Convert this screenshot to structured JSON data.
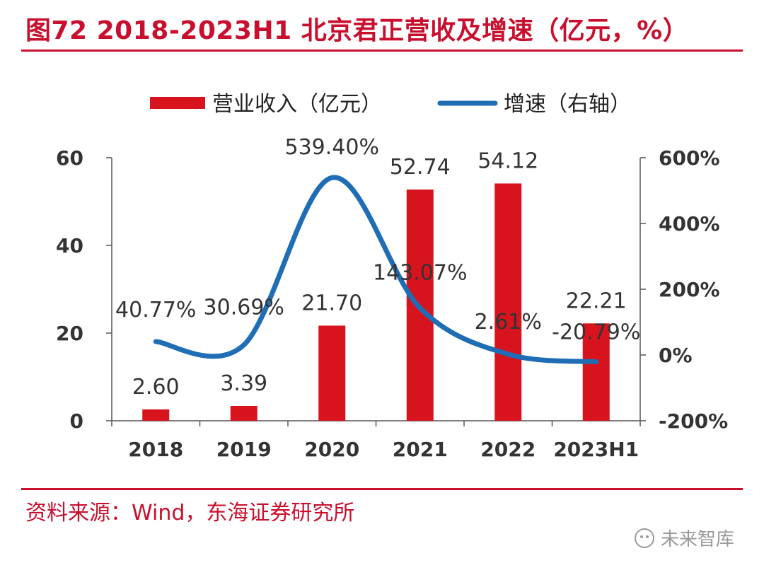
{
  "title": "图72  2018-2023H1 北京君正营收及增速（亿元，%）",
  "source": "资料来源：Wind，东海证券研究所",
  "watermark": "未来智库",
  "colors": {
    "accent": "#c8102e",
    "bar": "#d7141e",
    "line": "#1f6db5"
  },
  "chart_data": {
    "type": "bar+line",
    "categories": [
      "2018",
      "2019",
      "2020",
      "2021",
      "2022",
      "2023H1"
    ],
    "series": [
      {
        "name": "营业收入（亿元）",
        "type": "bar",
        "axis": "left",
        "values": [
          2.6,
          3.39,
          21.7,
          52.74,
          54.12,
          22.21
        ],
        "labels": [
          "2.60",
          "3.39",
          "21.70",
          "52.74",
          "54.12",
          "22.21"
        ]
      },
      {
        "name": "增速（右轴）",
        "type": "line",
        "axis": "right",
        "values": [
          40.77,
          30.69,
          539.4,
          143.07,
          2.61,
          -20.79
        ],
        "labels": [
          "40.77%",
          "30.69%",
          "539.40%",
          "143.07%",
          "2.61%",
          "-20.79%"
        ]
      }
    ],
    "left_axis": {
      "ylim": [
        0,
        60
      ],
      "ticks": [
        0,
        20,
        40,
        60
      ],
      "tick_labels": [
        "0",
        "20",
        "40",
        "60"
      ]
    },
    "right_axis": {
      "ylim": [
        -200,
        600
      ],
      "ticks": [
        -200,
        0,
        200,
        400,
        600
      ],
      "tick_labels": [
        "-200%",
        "0%",
        "200%",
        "400%",
        "600%"
      ]
    },
    "legend_position": "top-center",
    "grid": false
  }
}
